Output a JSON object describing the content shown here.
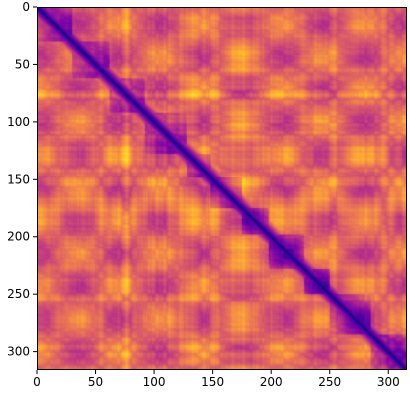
{
  "chart_data": {
    "type": "heatmap",
    "title": "",
    "xlabel": "",
    "ylabel": "",
    "colormap": "plasma",
    "matrix_size": [
      316,
      316
    ],
    "xlim": [
      0,
      316
    ],
    "ylim": [
      316,
      0
    ],
    "y_axis_inverted": true,
    "grid": false,
    "legend": "none",
    "x_ticks": [
      0,
      50,
      100,
      150,
      200,
      250,
      300
    ],
    "y_ticks": [
      0,
      50,
      100,
      150,
      200,
      250,
      300
    ],
    "x_tick_labels": [
      "0",
      "50",
      "100",
      "150",
      "200",
      "250",
      "300"
    ],
    "y_tick_labels": [
      "0",
      "50",
      "100",
      "150",
      "200",
      "250",
      "300"
    ],
    "diagonal_value": 0.0,
    "value_range": [
      0.0,
      1.0
    ],
    "low_value_blocks": [
      {
        "start": 0,
        "end": 30
      },
      {
        "start": 30,
        "end": 62
      },
      {
        "start": 62,
        "end": 92
      },
      {
        "start": 92,
        "end": 128
      },
      {
        "start": 128,
        "end": 148
      },
      {
        "start": 148,
        "end": 175
      },
      {
        "start": 175,
        "end": 198
      },
      {
        "start": 198,
        "end": 228
      },
      {
        "start": 228,
        "end": 250
      },
      {
        "start": 250,
        "end": 285
      },
      {
        "start": 285,
        "end": 316
      }
    ]
  },
  "colors": {
    "plasma_stops": [
      "#0d0887",
      "#5302a3",
      "#8b0aa5",
      "#b83289",
      "#db5c68",
      "#f48849",
      "#febd2a",
      "#f0f921"
    ],
    "axis": "#000000",
    "background": "#ffffff"
  }
}
